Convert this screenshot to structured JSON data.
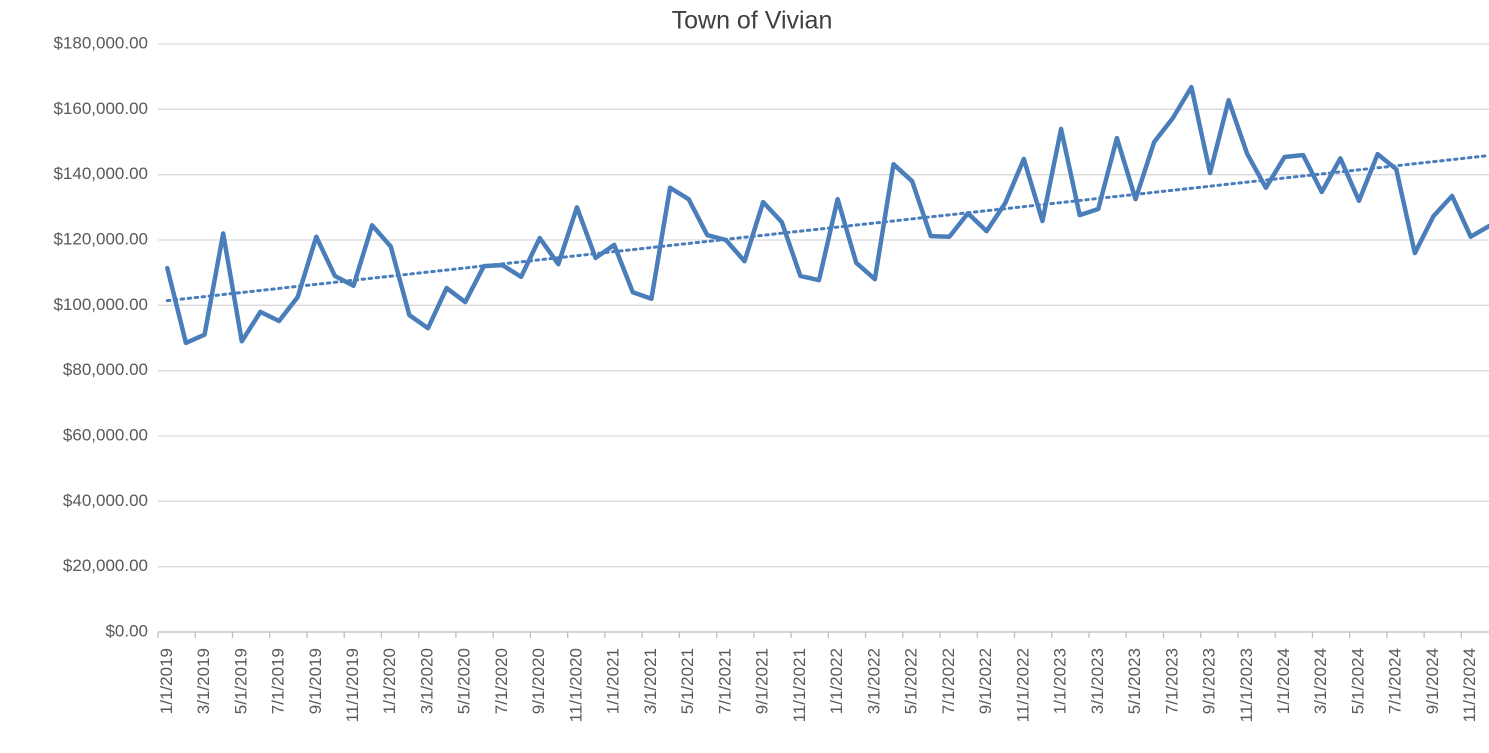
{
  "chart_data": {
    "type": "line",
    "title": "Town of Vivian",
    "categories": [
      "1/1/2019",
      null,
      "3/1/2019",
      null,
      "5/1/2019",
      null,
      "7/1/2019",
      null,
      "9/1/2019",
      null,
      "11/1/2019",
      null,
      "1/1/2020",
      null,
      "3/1/2020",
      null,
      "5/1/2020",
      null,
      "7/1/2020",
      null,
      "9/1/2020",
      null,
      "11/1/2020",
      null,
      "1/1/2021",
      null,
      "3/1/2021",
      null,
      "5/1/2021",
      null,
      "7/1/2021",
      null,
      "9/1/2021",
      null,
      "11/1/2021",
      null,
      "1/1/2022",
      null,
      "3/1/2022",
      null,
      "5/1/2022",
      null,
      "7/1/2022",
      null,
      "9/1/2022",
      null,
      "11/1/2022",
      null,
      "1/1/2023",
      null,
      "3/1/2023",
      null,
      "5/1/2023",
      null,
      "7/1/2023",
      null,
      "9/1/2023",
      null,
      "11/1/2023",
      null,
      "1/1/2024",
      null,
      "3/1/2024",
      null,
      "5/1/2024",
      null,
      "7/1/2024",
      null,
      "9/1/2024",
      null,
      "11/1/2024",
      null
    ],
    "values": [
      111400,
      88500,
      91000,
      122000,
      89000,
      98000,
      95200,
      102500,
      121000,
      109000,
      106000,
      124500,
      118000,
      97000,
      93000,
      105300,
      101000,
      112000,
      112300,
      108700,
      120600,
      112600,
      130000,
      114500,
      118500,
      104000,
      102000,
      136000,
      132500,
      121500,
      120000,
      113500,
      131600,
      125500,
      109000,
      107700,
      132500,
      113000,
      108000,
      143200,
      138000,
      121200,
      121000,
      128200,
      122700,
      131300,
      144800,
      125800,
      154000,
      127600,
      129500,
      151200,
      132500,
      150000,
      157300,
      166800,
      140500,
      162800,
      146300,
      136000,
      145400,
      146000,
      134700,
      145000,
      132000,
      146300,
      141700,
      116000,
      127300,
      133500,
      121000,
      124300
    ],
    "color": "#4a7ebb",
    "trendline": "linear",
    "ylim": [
      0,
      180000
    ],
    "yticks": [
      {
        "value": 0,
        "label": "$0.00"
      },
      {
        "value": 20000,
        "label": "$20,000.00"
      },
      {
        "value": 40000,
        "label": "$40,000.00"
      },
      {
        "value": 60000,
        "label": "$60,000.00"
      },
      {
        "value": 80000,
        "label": "$80,000.00"
      },
      {
        "value": 100000,
        "label": "$100,000.00"
      },
      {
        "value": 120000,
        "label": "$120,000.00"
      },
      {
        "value": 140000,
        "label": "$140,000.00"
      },
      {
        "value": 160000,
        "label": "$160,000.00"
      },
      {
        "value": 180000,
        "label": "$180,000.00"
      }
    ],
    "grid": true
  }
}
